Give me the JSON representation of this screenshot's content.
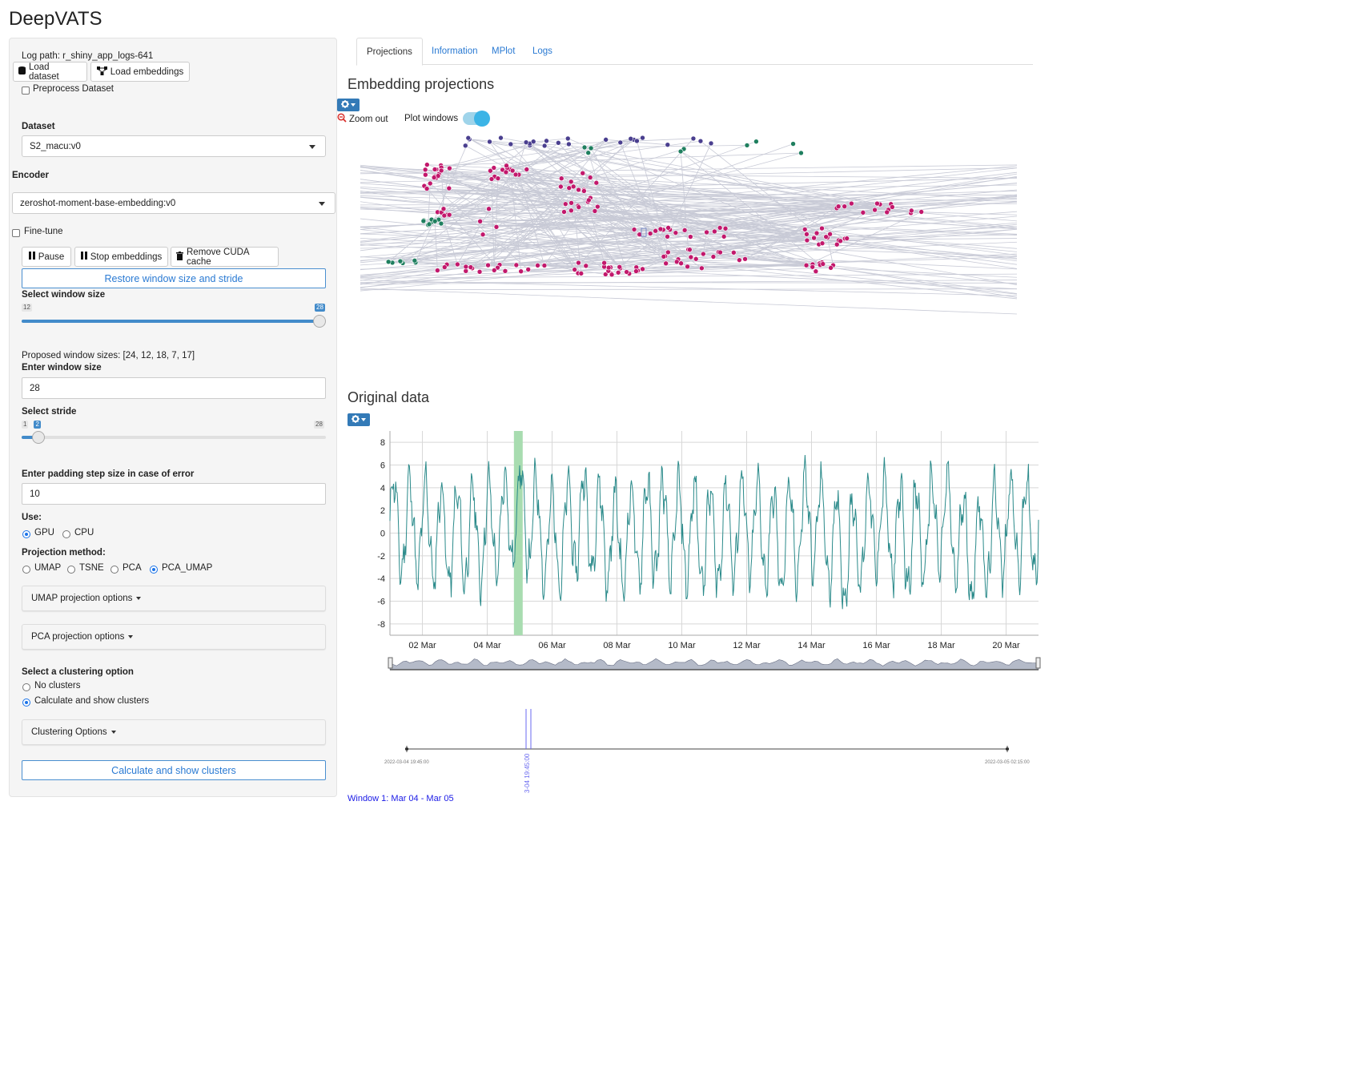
{
  "app": {
    "title": "DeepVATS"
  },
  "sidebar": {
    "log_path": "Log path: r_shiny_app_logs-641",
    "load_dataset_label": "Load dataset",
    "load_embeddings_label": "Load embeddings",
    "preprocess_label": "Preprocess Dataset",
    "dataset_label": "Dataset",
    "dataset_value": "S2_macu:v0",
    "encoder_label": "Encoder",
    "encoder_value": "zeroshot-moment-base-embedding:v0",
    "finetune_label": "Fine-tune",
    "pause_label": "Pause",
    "stop_embeddings_label": "Stop embeddings",
    "remove_cuda_label": "Remove CUDA cache",
    "restore_label": "Restore window size and stride",
    "window_size_slider": {
      "label": "Select window size",
      "min": "12",
      "max": "28",
      "value": "28",
      "fraction": 1.0
    },
    "proposed_sizes": "Proposed window sizes: [24, 12, 18, 7, 17]",
    "enter_window_size_label": "Enter window size",
    "window_size_value": "28",
    "stride_slider": {
      "label": "Select stride",
      "min": "1",
      "max": "28",
      "value": "2",
      "fraction": 0.037
    },
    "padding_label": "Enter padding step size in case of error",
    "padding_value": "10",
    "use_label": "Use:",
    "use_options": [
      "GPU",
      "CPU"
    ],
    "use_selected": "GPU",
    "projection_label": "Projection method:",
    "projection_options": [
      "UMAP",
      "TSNE",
      "PCA",
      "PCA_UMAP"
    ],
    "projection_selected": "PCA_UMAP",
    "umap_options_label": "UMAP projection options",
    "pca_options_label": "PCA projection options",
    "clustering_label": "Select a clustering option",
    "clustering_options": [
      "No clusters",
      "Calculate and show clusters"
    ],
    "clustering_selected": "Calculate and show clusters",
    "clustering_options_label": "Clustering Options",
    "calculate_button_label": "Calculate and show clusters"
  },
  "tabs": [
    "Projections",
    "Information",
    "MPlot",
    "Logs"
  ],
  "active_tab": "Projections",
  "projections": {
    "title": "Embedding projections",
    "zoom_out_label": "Zoom out",
    "plot_windows_label": "Plot windows",
    "plot_windows_on": true,
    "colors": {
      "cluster_magenta": "#c2186c",
      "cluster_green": "#1f7f5f",
      "cluster_purple": "#4a3f8f",
      "path_line": "#c8cad6"
    }
  },
  "original": {
    "title": "Original data",
    "line_color": "#2a8a8a",
    "highlight_color": "#a8dcb0"
  },
  "window_timeline": {
    "start_label": "2022-03-04 19:45:00",
    "end_label": "2022-03-05 02:15:00",
    "marker_label": "3-04 19:45:00"
  },
  "window_caption": "Window 1: Mar 04 - Mar 05",
  "chart_data": {
    "type": "line",
    "title": "Original data",
    "xlabel": "",
    "ylabel": "",
    "x_ticks": [
      "02 Mar",
      "04 Mar",
      "06 Mar",
      "08 Mar",
      "10 Mar",
      "12 Mar",
      "14 Mar",
      "16 Mar",
      "18 Mar",
      "20 Mar"
    ],
    "y_ticks": [
      8,
      6,
      4,
      2,
      0,
      -2,
      -4,
      -6,
      -8
    ],
    "ylim": [
      -9,
      9
    ],
    "xlim": [
      "2022-03-01",
      "2022-03-21"
    ],
    "grid": true,
    "highlight_window": [
      "2022-03-04 19:45",
      "2022-03-05 02:15"
    ],
    "series": [
      {
        "x": [
          "2022-03-01",
          "2022-03-02",
          "2022-03-03",
          "2022-03-04",
          "2022-03-05",
          "2022-03-06",
          "2022-03-07",
          "2022-03-08",
          "2022-03-09",
          "2022-03-10",
          "2022-03-11",
          "2022-03-12",
          "2022-03-13",
          "2022-03-14",
          "2022-03-15",
          "2022-03-16",
          "2022-03-17",
          "2022-03-18",
          "2022-03-19",
          "2022-03-20",
          "2022-03-21"
        ],
        "values": [
          3,
          1,
          -2,
          0,
          7.3,
          -3,
          5,
          -4,
          2,
          0,
          -2,
          3,
          -4,
          5,
          -7.8,
          4,
          -3,
          5,
          -7.3,
          3,
          1
        ]
      }
    ]
  }
}
